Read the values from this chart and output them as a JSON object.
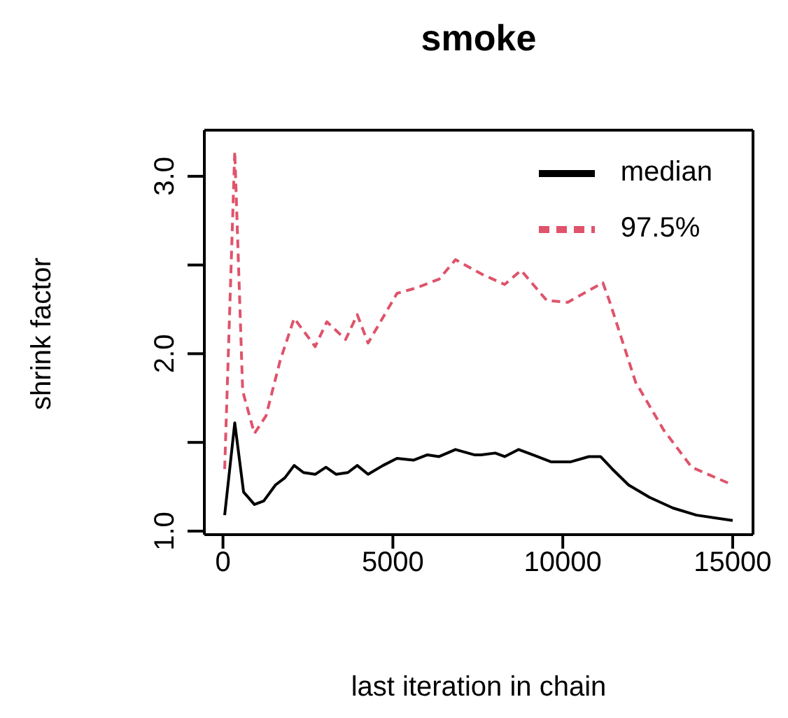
{
  "chart_data": {
    "type": "line",
    "title": "smoke",
    "xlabel": "last iteration in chain",
    "ylabel": "shrink factor",
    "xlim": [
      -548,
      15598
    ],
    "ylim": [
      0.98,
      3.26
    ],
    "xticks": [
      0,
      5000,
      10000,
      15000
    ],
    "yticks": [
      {
        "value": 1,
        "label": "1.0"
      },
      {
        "value": 1.5,
        "label": null
      },
      {
        "value": 2,
        "label": "2.0"
      },
      {
        "value": 2.5,
        "label": null
      },
      {
        "value": 3,
        "label": "3.0"
      }
    ],
    "grid": false,
    "legend": "top right",
    "marker": "none",
    "series": [
      {
        "name": "median",
        "color": "#000000",
        "line_style": "solid",
        "x": [
          50,
          347,
          607,
          925,
          1200,
          1545,
          1820,
          2095,
          2370,
          2713,
          3030,
          3333,
          3676,
          3952,
          4270,
          4710,
          5121,
          5604,
          6017,
          6360,
          6843,
          7393,
          7600,
          8012,
          8289,
          8702,
          9115,
          9665,
          10218,
          10767,
          11110,
          11457,
          11936,
          12555,
          13245,
          13935,
          15000
        ],
        "values": [
          1.09,
          1.61,
          1.22,
          1.15,
          1.17,
          1.26,
          1.3,
          1.37,
          1.33,
          1.32,
          1.36,
          1.32,
          1.33,
          1.37,
          1.32,
          1.37,
          1.41,
          1.4,
          1.43,
          1.42,
          1.46,
          1.43,
          1.43,
          1.44,
          1.42,
          1.46,
          1.43,
          1.39,
          1.39,
          1.42,
          1.42,
          1.35,
          1.26,
          1.19,
          1.13,
          1.09,
          1.06
        ]
      },
      {
        "name": "97.5%",
        "color": "#df536b",
        "line_style": "dashed",
        "x": [
          50,
          347,
          580,
          925,
          1268,
          1681,
          2095,
          2713,
          3056,
          3609,
          3952,
          4270,
          5121,
          5675,
          6360,
          6843,
          7600,
          8289,
          8772,
          9528,
          10147,
          11180,
          11386,
          12142,
          12968,
          13794,
          15000
        ],
        "values": [
          1.35,
          3.14,
          1.79,
          1.55,
          1.65,
          1.96,
          2.2,
          2.04,
          2.18,
          2.08,
          2.22,
          2.06,
          2.34,
          2.37,
          2.42,
          2.53,
          2.45,
          2.39,
          2.47,
          2.3,
          2.29,
          2.4,
          2.29,
          1.84,
          1.57,
          1.36,
          1.26
        ]
      }
    ]
  }
}
